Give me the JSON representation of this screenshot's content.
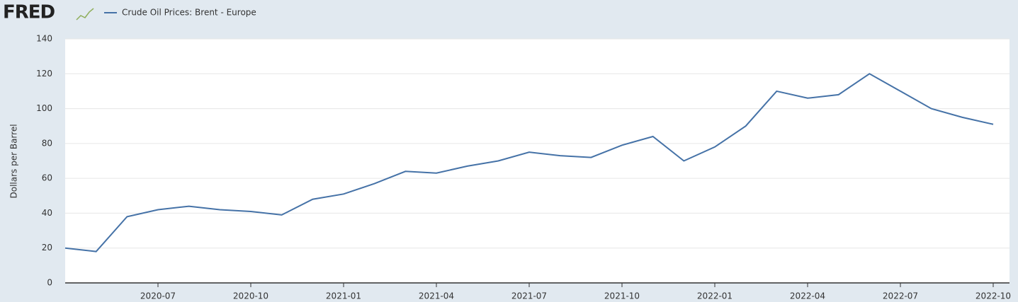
{
  "chart_data": {
    "type": "line",
    "logo": "FRED",
    "title": "Crude Oil Prices: Brent - Europe",
    "y_label": "Dollars per Barrel",
    "x": [
      "2020-04",
      "2020-05",
      "2020-06",
      "2020-07",
      "2020-08",
      "2020-09",
      "2020-10",
      "2020-11",
      "2020-12",
      "2021-01",
      "2021-02",
      "2021-03",
      "2021-04",
      "2021-05",
      "2021-06",
      "2021-07",
      "2021-08",
      "2021-09",
      "2021-10",
      "2021-11",
      "2021-12",
      "2022-01",
      "2022-02",
      "2022-03",
      "2022-04",
      "2022-05",
      "2022-06",
      "2022-07",
      "2022-08",
      "2022-09",
      "2022-10"
    ],
    "series": [
      {
        "name": "Crude Oil Prices: Brent - Europe",
        "color": "#4572a7",
        "values": [
          20,
          18,
          38,
          42,
          44,
          42,
          41,
          39,
          48,
          51,
          57,
          64,
          63,
          67,
          70,
          75,
          73,
          72,
          79,
          84,
          70,
          78,
          90,
          110,
          106,
          108,
          120,
          110,
          100,
          95,
          91
        ]
      }
    ],
    "xlim": [
      "2020-04",
      "2022-10"
    ],
    "xticks": [
      "2020-07",
      "2020-10",
      "2021-01",
      "2021-04",
      "2021-07",
      "2021-10",
      "2022-01",
      "2022-04",
      "2022-07",
      "2022-10"
    ],
    "ylim": [
      0,
      140
    ],
    "yticks": [
      0,
      20,
      40,
      60,
      80,
      100,
      120,
      140
    ],
    "grid": true
  }
}
